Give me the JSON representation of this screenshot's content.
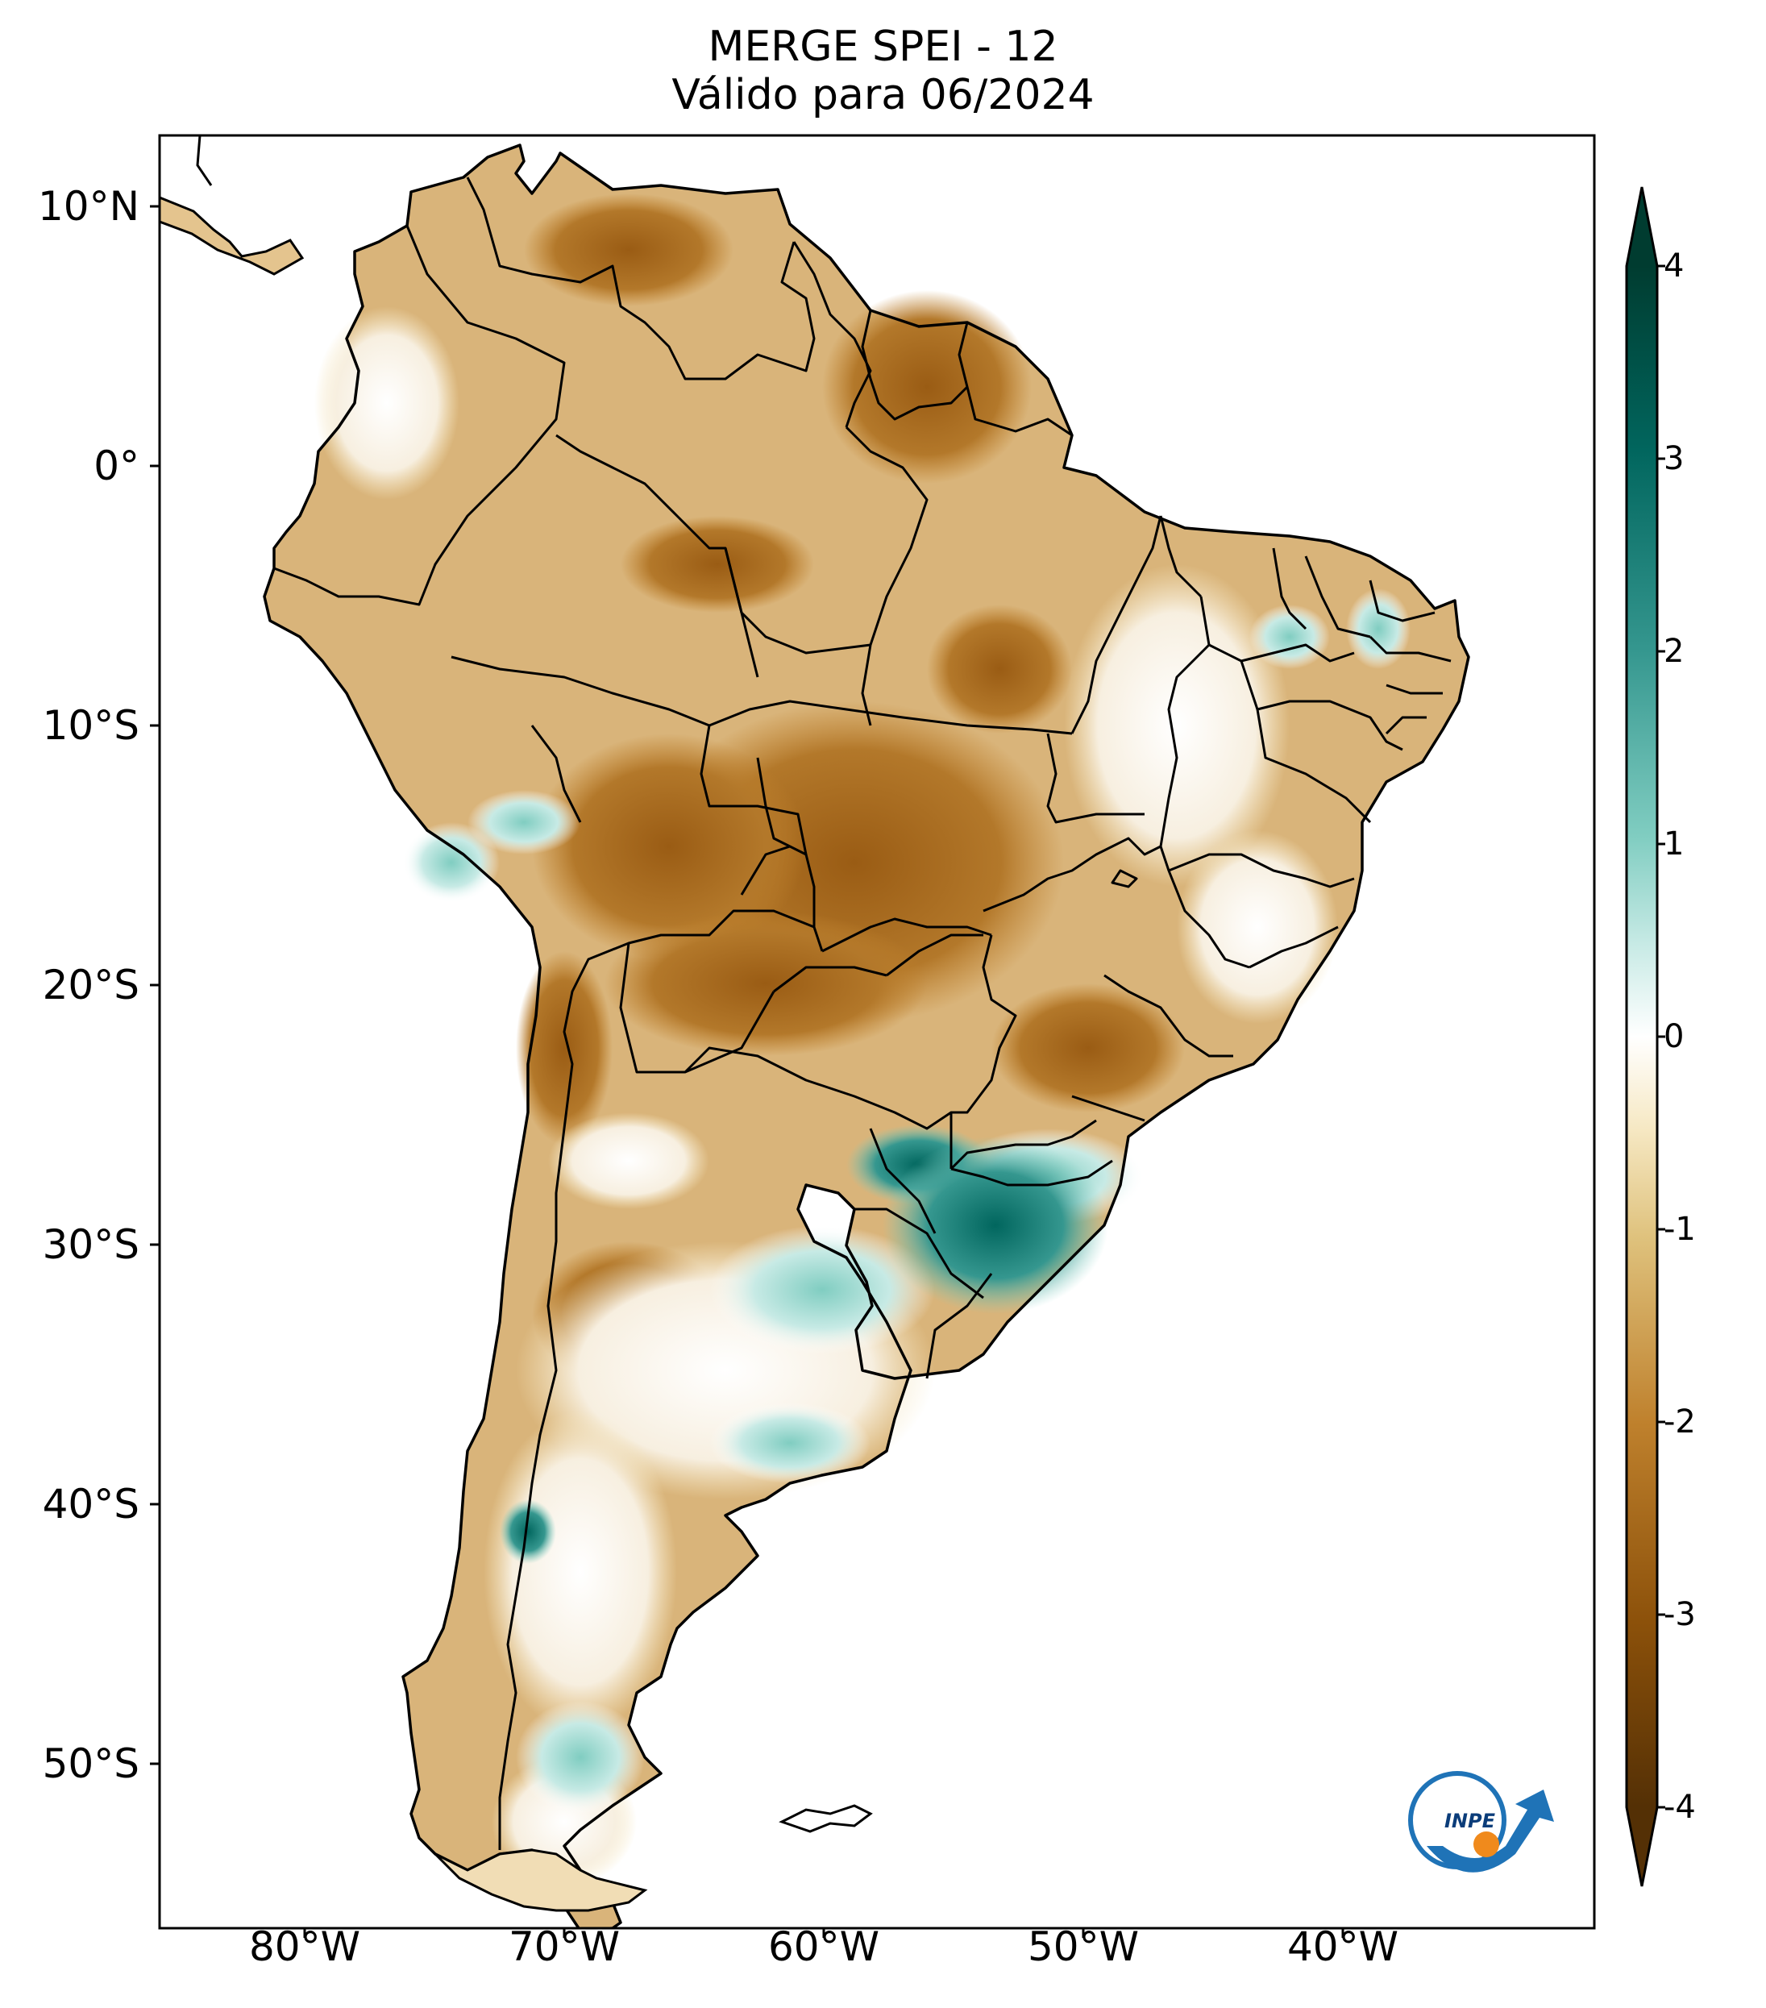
{
  "title": {
    "line1": "MERGE   SPEI - 12",
    "line2": "Válido para 06/2024"
  },
  "axes": {
    "lat_labels": [
      "10°N",
      "0°",
      "10°S",
      "20°S",
      "30°S",
      "40°S",
      "50°S"
    ],
    "lon_labels": [
      "80°W",
      "70°W",
      "60°W",
      "50°W",
      "40°W"
    ]
  },
  "colorbar": {
    "labels": [
      "4",
      "3",
      "2",
      "1",
      "0",
      "-1",
      "-2",
      "-3",
      "-4"
    ],
    "range": [
      -4,
      4
    ],
    "colors": {
      "min": "#543005",
      "dry_strong": "#8c510a",
      "dry": "#bf812d",
      "dry_light": "#dfc27d",
      "neutral_dry": "#f6e8c3",
      "neutral": "#ffffff",
      "wet_light": "#c7eae5",
      "wet": "#80cdc1",
      "wet_strong": "#35978f",
      "wet_very": "#01665e",
      "max": "#003c30"
    }
  },
  "logo": {
    "text": "INPE",
    "colors": {
      "ring": "#1f73b7",
      "dot": "#f08a1c"
    }
  },
  "map_colors": {
    "land": "#d9b47a",
    "border": "#000000"
  }
}
